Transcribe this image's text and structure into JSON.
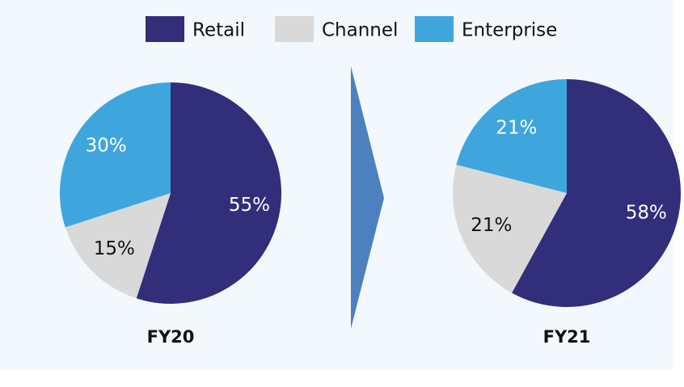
{
  "chart_data": [
    {
      "type": "pie",
      "title": "FY20",
      "categories": [
        "Retail",
        "Channel",
        "Enterprise"
      ],
      "values": [
        55,
        15,
        30
      ],
      "value_labels": [
        "55%",
        "15%",
        "30%"
      ],
      "colors": [
        "#312e7a",
        "#d9d9d9",
        "#3ea6dd"
      ]
    },
    {
      "type": "pie",
      "title": "FY21",
      "categories": [
        "Retail",
        "Channel",
        "Enterprise"
      ],
      "values": [
        58,
        21,
        21
      ],
      "value_labels": [
        "58%",
        "21%",
        "21%"
      ],
      "colors": [
        "#312e7a",
        "#d9d9d9",
        "#3ea6dd"
      ]
    }
  ]
}
